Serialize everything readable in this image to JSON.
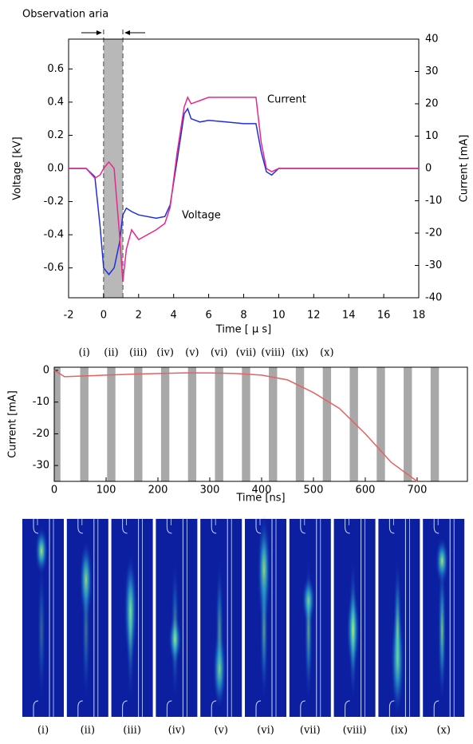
{
  "chart_data": [
    {
      "type": "line",
      "annotation": "Observation aria",
      "xlabel": "Time [ μ s]",
      "ylabel": "Voltage [kV]",
      "y2label": "Current [mA]",
      "x": [
        -2,
        -1,
        -0.5,
        -0.2,
        0,
        0.3,
        0.6,
        0.9,
        1.1,
        1.3,
        1.6,
        2,
        3,
        3.5,
        3.8,
        4.2,
        4.6,
        4.8,
        5,
        5.5,
        6,
        7,
        8,
        8.7,
        9,
        9.3,
        9.6,
        10,
        11,
        12,
        14,
        16,
        18
      ],
      "series": [
        {
          "name": "Voltage",
          "color": "#1f2fe0",
          "values": [
            0,
            0,
            -0.05,
            -0.35,
            -0.6,
            -0.64,
            -0.6,
            -0.45,
            -0.28,
            -0.24,
            -0.26,
            -0.28,
            -0.3,
            -0.29,
            -0.22,
            0.05,
            0.33,
            0.36,
            0.3,
            0.28,
            0.29,
            0.28,
            0.27,
            0.27,
            0.1,
            -0.02,
            -0.04,
            0,
            0,
            0,
            0,
            0,
            0
          ]
        },
        {
          "name": "Current",
          "color": "#e8288c",
          "axis": "y2",
          "values": [
            0,
            0,
            -3,
            -2,
            0,
            2,
            0,
            -20,
            -35,
            -25,
            -19,
            -22,
            -19,
            -17,
            -12,
            5,
            19,
            22,
            20,
            21,
            22,
            22,
            22,
            22,
            8,
            0,
            -1,
            0,
            0,
            0,
            0,
            0,
            0
          ]
        }
      ],
      "highlight_x": [
        0,
        1.1
      ],
      "xlim": [
        -2,
        18
      ],
      "xticks": [
        -2,
        0,
        2,
        4,
        6,
        8,
        10,
        12,
        14,
        16,
        18
      ],
      "ylim": [
        -0.78,
        0.78
      ],
      "yticks": [
        -0.6,
        -0.4,
        -0.2,
        {
          "value": 0,
          "label": "0.0"
        },
        0.2,
        0.4,
        0.6
      ],
      "y2lim": [
        -40,
        40
      ],
      "y2ticks": [
        -40,
        -30,
        -20,
        -10,
        0,
        10,
        20,
        30,
        40
      ]
    },
    {
      "type": "line",
      "xlabel": "Time [ns]",
      "ylabel": "Current [mA]",
      "x": [
        0,
        20,
        50,
        100,
        150,
        200,
        250,
        300,
        350,
        400,
        450,
        500,
        550,
        600,
        650,
        700
      ],
      "series": [
        {
          "name": "Current",
          "color": "#e86060",
          "values": [
            0,
            -2,
            -1.8,
            -1.5,
            -1.2,
            -1,
            -0.8,
            -0.8,
            -1,
            -1.5,
            -3,
            -7,
            -12,
            -20,
            -29,
            -35
          ]
        }
      ],
      "gates": {
        "x": [
          4,
          58,
          110,
          162,
          214,
          266,
          318,
          370,
          422,
          474,
          526,
          578,
          630,
          682,
          734
        ],
        "labels": [
          null,
          "(i)",
          "(ii)",
          "(iii)",
          "(iv)",
          "(v)",
          "(vi)",
          "(vii)",
          "(viii)",
          "(ix)",
          "(x)",
          null,
          null,
          null,
          null
        ]
      },
      "gate_width": 16,
      "xlim": [
        0,
        797
      ],
      "xticks": [
        0,
        100,
        200,
        300,
        400,
        500,
        600,
        700
      ],
      "ylim": [
        -35,
        1
      ],
      "yticks": [
        -30,
        -20,
        -10,
        0
      ]
    }
  ],
  "images": {
    "labels": [
      "(i)",
      "(ii)",
      "(iii)",
      "(iv)",
      "(v)",
      "(vi)",
      "(vii)",
      "(viii)",
      "(ix)",
      "(x)"
    ]
  }
}
